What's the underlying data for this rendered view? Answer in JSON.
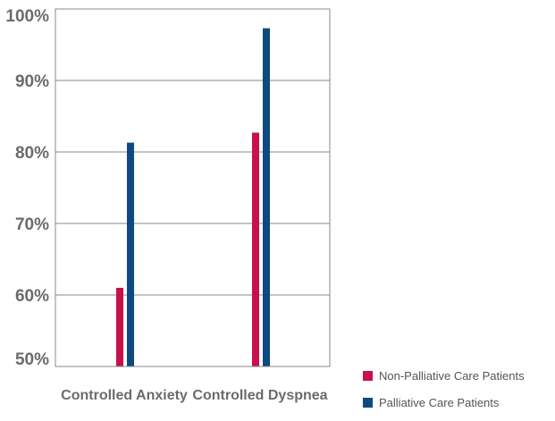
{
  "chart_data": {
    "type": "bar",
    "categories": [
      "Controlled Anxiety",
      "Controlled Dyspnea"
    ],
    "series": [
      {
        "name": "Non-Palliative Care Patients",
        "values": [
          61,
          82.7
        ],
        "color": "#c8104c"
      },
      {
        "name": "Palliative Care Patients",
        "values": [
          81.3,
          97.3
        ],
        "color": "#0c4a80"
      }
    ],
    "yticks": [
      "50%",
      "60%",
      "70%",
      "80%",
      "90%",
      "100%"
    ],
    "ylim": [
      50,
      100
    ],
    "grid": true,
    "legend": "bottom-right"
  }
}
